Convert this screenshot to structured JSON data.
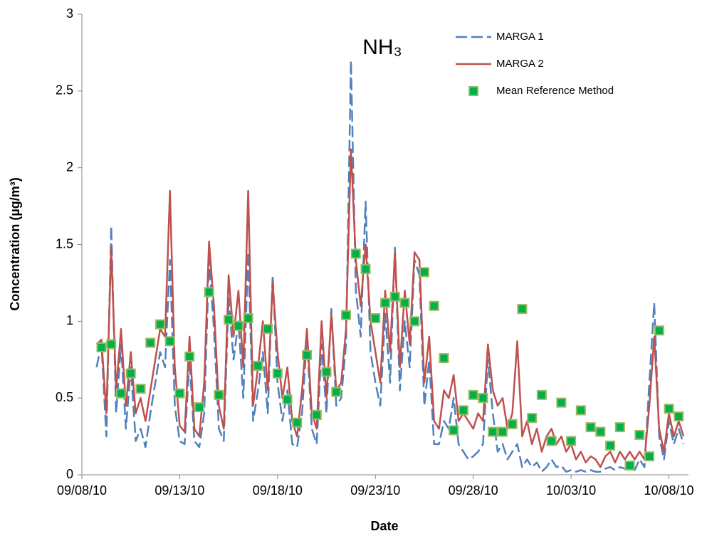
{
  "chart_data": {
    "type": "line",
    "title": "NH₃",
    "x_label": "Date",
    "y_label": "Concentration (µg/m³)",
    "xlim": [
      "2010-09-08",
      "2010-10-09"
    ],
    "xticks": [
      {
        "value": "2010-09-08",
        "label": "09/08/10"
      },
      {
        "value": "2010-09-13",
        "label": "09/13/10"
      },
      {
        "value": "2010-09-18",
        "label": "09/18/10"
      },
      {
        "value": "2010-09-23",
        "label": "09/23/10"
      },
      {
        "value": "2010-09-28",
        "label": "09/28/10"
      },
      {
        "value": "2010-10-03",
        "label": "10/03/10"
      },
      {
        "value": "2010-10-08",
        "label": "10/08/10"
      }
    ],
    "ylim": [
      0,
      3
    ],
    "yticks": [
      0,
      0.5,
      1,
      1.5,
      2,
      2.5,
      3
    ],
    "legend": "top-right",
    "x": [
      "2010-09-08T18:00",
      "2010-09-09T00:00",
      "2010-09-09T06:00",
      "2010-09-09T12:00",
      "2010-09-09T18:00",
      "2010-09-10T00:00",
      "2010-09-10T06:00",
      "2010-09-10T12:00",
      "2010-09-10T18:00",
      "2010-09-11T00:00",
      "2010-09-11T06:00",
      "2010-09-11T12:00",
      "2010-09-11T18:00",
      "2010-09-12T00:00",
      "2010-09-12T06:00",
      "2010-09-12T12:00",
      "2010-09-12T18:00",
      "2010-09-13T00:00",
      "2010-09-13T06:00",
      "2010-09-13T12:00",
      "2010-09-13T18:00",
      "2010-09-14T00:00",
      "2010-09-14T06:00",
      "2010-09-14T12:00",
      "2010-09-14T18:00",
      "2010-09-15T00:00",
      "2010-09-15T06:00",
      "2010-09-15T12:00",
      "2010-09-15T18:00",
      "2010-09-16T00:00",
      "2010-09-16T06:00",
      "2010-09-16T12:00",
      "2010-09-16T18:00",
      "2010-09-17T00:00",
      "2010-09-17T06:00",
      "2010-09-17T12:00",
      "2010-09-17T18:00",
      "2010-09-18T00:00",
      "2010-09-18T06:00",
      "2010-09-18T12:00",
      "2010-09-18T18:00",
      "2010-09-19T00:00",
      "2010-09-19T06:00",
      "2010-09-19T12:00",
      "2010-09-19T18:00",
      "2010-09-20T00:00",
      "2010-09-20T06:00",
      "2010-09-20T12:00",
      "2010-09-20T18:00",
      "2010-09-21T00:00",
      "2010-09-21T06:00",
      "2010-09-21T12:00",
      "2010-09-21T18:00",
      "2010-09-22T00:00",
      "2010-09-22T06:00",
      "2010-09-22T12:00",
      "2010-09-22T18:00",
      "2010-09-23T00:00",
      "2010-09-23T06:00",
      "2010-09-23T12:00",
      "2010-09-23T18:00",
      "2010-09-24T00:00",
      "2010-09-24T06:00",
      "2010-09-24T12:00",
      "2010-09-24T18:00",
      "2010-09-25T00:00",
      "2010-09-25T06:00",
      "2010-09-25T12:00",
      "2010-09-25T18:00",
      "2010-09-26T00:00",
      "2010-09-26T06:00",
      "2010-09-26T12:00",
      "2010-09-26T18:00",
      "2010-09-27T00:00",
      "2010-09-27T06:00",
      "2010-09-27T12:00",
      "2010-09-27T18:00",
      "2010-09-28T00:00",
      "2010-09-28T06:00",
      "2010-09-28T12:00",
      "2010-09-28T18:00",
      "2010-09-29T00:00",
      "2010-09-29T06:00",
      "2010-09-29T12:00",
      "2010-09-29T18:00",
      "2010-09-30T00:00",
      "2010-09-30T06:00",
      "2010-09-30T12:00",
      "2010-09-30T18:00",
      "2010-10-01T00:00",
      "2010-10-01T06:00",
      "2010-10-01T12:00",
      "2010-10-01T18:00",
      "2010-10-02T00:00",
      "2010-10-02T06:00",
      "2010-10-02T12:00",
      "2010-10-02T18:00",
      "2010-10-03T00:00",
      "2010-10-03T06:00",
      "2010-10-03T12:00",
      "2010-10-03T18:00",
      "2010-10-04T00:00",
      "2010-10-04T06:00",
      "2010-10-04T12:00",
      "2010-10-04T18:00",
      "2010-10-05T00:00",
      "2010-10-05T06:00",
      "2010-10-05T12:00",
      "2010-10-05T18:00",
      "2010-10-06T00:00",
      "2010-10-06T06:00",
      "2010-10-06T12:00",
      "2010-10-06T18:00",
      "2010-10-07T00:00",
      "2010-10-07T06:00",
      "2010-10-07T12:00",
      "2010-10-07T18:00",
      "2010-10-08T00:00",
      "2010-10-08T06:00",
      "2010-10-08T12:00",
      "2010-10-08T18:00"
    ],
    "series": [
      {
        "name": "MARGA 1",
        "type": "line",
        "dashed": true,
        "color": "#4f81bd",
        "values": [
          0.7,
          0.85,
          0.25,
          1.62,
          0.4,
          0.85,
          0.3,
          0.7,
          0.22,
          0.3,
          0.18,
          0.4,
          0.6,
          0.8,
          0.7,
          1.4,
          0.45,
          0.22,
          0.2,
          0.75,
          0.22,
          0.18,
          0.4,
          1.4,
          0.95,
          0.3,
          0.22,
          1.15,
          0.75,
          1.0,
          0.5,
          1.45,
          0.35,
          0.55,
          0.8,
          0.4,
          1.3,
          0.6,
          0.35,
          0.55,
          0.2,
          0.18,
          0.4,
          0.9,
          0.3,
          0.2,
          0.85,
          0.4,
          1.08,
          0.45,
          0.5,
          0.85,
          2.7,
          1.2,
          0.9,
          1.78,
          0.8,
          0.6,
          0.45,
          1.05,
          0.6,
          1.48,
          0.55,
          1.0,
          0.7,
          1.4,
          1.3,
          0.45,
          0.75,
          0.2,
          0.2,
          0.35,
          0.3,
          0.5,
          0.2,
          0.15,
          0.1,
          0.12,
          0.15,
          0.2,
          0.75,
          0.4,
          0.15,
          0.2,
          0.1,
          0.15,
          0.2,
          0.05,
          0.1,
          0.05,
          0.08,
          0.02,
          0.05,
          0.1,
          0.05,
          0.06,
          0.02,
          0.03,
          0.02,
          0.03,
          0.02,
          0.03,
          0.02,
          0.02,
          0.04,
          0.05,
          0.03,
          0.05,
          0.04,
          0.05,
          0.03,
          0.1,
          0.05,
          0.6,
          1.12,
          0.25,
          0.1,
          0.35,
          0.2,
          0.3,
          0.2
        ]
      },
      {
        "name": "MARGA 2",
        "type": "line",
        "dashed": false,
        "color": "#c0504d",
        "values": [
          0.85,
          0.88,
          0.4,
          1.48,
          0.55,
          0.95,
          0.45,
          0.8,
          0.4,
          0.5,
          0.35,
          0.55,
          0.75,
          0.95,
          0.9,
          1.85,
          0.7,
          0.32,
          0.28,
          0.9,
          0.3,
          0.25,
          0.6,
          1.52,
          1.1,
          0.45,
          0.3,
          1.3,
          0.9,
          1.2,
          0.7,
          1.85,
          0.45,
          0.7,
          1.0,
          0.55,
          1.25,
          0.8,
          0.5,
          0.7,
          0.35,
          0.25,
          0.55,
          0.95,
          0.4,
          0.3,
          1.0,
          0.5,
          1.05,
          0.55,
          0.6,
          0.95,
          2.12,
          1.4,
          1.1,
          1.5,
          1.0,
          0.8,
          0.6,
          1.2,
          0.8,
          1.45,
          0.7,
          1.2,
          0.85,
          1.45,
          1.4,
          0.6,
          0.9,
          0.35,
          0.3,
          0.55,
          0.5,
          0.65,
          0.35,
          0.4,
          0.35,
          0.3,
          0.4,
          0.35,
          0.85,
          0.55,
          0.45,
          0.5,
          0.3,
          0.4,
          0.87,
          0.25,
          0.35,
          0.2,
          0.3,
          0.15,
          0.25,
          0.3,
          0.2,
          0.25,
          0.15,
          0.2,
          0.1,
          0.15,
          0.08,
          0.12,
          0.1,
          0.05,
          0.12,
          0.15,
          0.08,
          0.15,
          0.1,
          0.15,
          0.1,
          0.15,
          0.1,
          0.45,
          0.9,
          0.3,
          0.15,
          0.4,
          0.25,
          0.35,
          0.25
        ]
      },
      {
        "name": "Mean Reference Method",
        "type": "scatter",
        "color": "#00b050",
        "edge_color": "#9bbb59",
        "x": [
          "2010-09-09T00:00",
          "2010-09-09T12:00",
          "2010-09-10T00:00",
          "2010-09-10T12:00",
          "2010-09-11T00:00",
          "2010-09-11T12:00",
          "2010-09-12T00:00",
          "2010-09-12T12:00",
          "2010-09-13T00:00",
          "2010-09-13T12:00",
          "2010-09-14T00:00",
          "2010-09-14T12:00",
          "2010-09-15T00:00",
          "2010-09-15T12:00",
          "2010-09-16T00:00",
          "2010-09-16T12:00",
          "2010-09-17T00:00",
          "2010-09-17T12:00",
          "2010-09-18T00:00",
          "2010-09-18T12:00",
          "2010-09-19T00:00",
          "2010-09-19T12:00",
          "2010-09-20T00:00",
          "2010-09-20T12:00",
          "2010-09-21T00:00",
          "2010-09-21T12:00",
          "2010-09-22T00:00",
          "2010-09-22T12:00",
          "2010-09-23T00:00",
          "2010-09-23T12:00",
          "2010-09-24T00:00",
          "2010-09-24T12:00",
          "2010-09-25T00:00",
          "2010-09-25T12:00",
          "2010-09-26T00:00",
          "2010-09-26T12:00",
          "2010-09-27T00:00",
          "2010-09-27T12:00",
          "2010-09-28T00:00",
          "2010-09-28T12:00",
          "2010-09-29T00:00",
          "2010-09-29T12:00",
          "2010-09-30T00:00",
          "2010-09-30T12:00",
          "2010-10-01T00:00",
          "2010-10-01T12:00",
          "2010-10-02T00:00",
          "2010-10-02T12:00",
          "2010-10-03T00:00",
          "2010-10-03T12:00",
          "2010-10-04T00:00",
          "2010-10-04T12:00",
          "2010-10-05T00:00",
          "2010-10-05T12:00",
          "2010-10-06T00:00",
          "2010-10-06T12:00",
          "2010-10-07T00:00",
          "2010-10-07T12:00",
          "2010-10-08T00:00",
          "2010-10-08T12:00"
        ],
        "values": [
          0.83,
          0.85,
          0.53,
          0.66,
          0.56,
          0.86,
          0.98,
          0.87,
          0.53,
          0.77,
          0.44,
          1.19,
          0.52,
          1.01,
          0.97,
          1.02,
          0.71,
          0.95,
          0.66,
          0.49,
          0.34,
          0.78,
          0.39,
          0.67,
          0.54,
          1.04,
          1.44,
          1.34,
          1.02,
          1.12,
          1.16,
          1.12,
          1.0,
          1.32,
          1.1,
          0.76,
          0.29,
          0.42,
          0.52,
          0.5,
          0.28,
          0.28,
          0.33,
          1.08,
          0.37,
          0.52,
          0.22,
          0.47,
          0.22,
          0.42,
          0.31,
          0.28,
          0.19,
          0.31,
          0.06,
          0.26,
          0.12,
          0.94,
          0.43,
          0.38
        ]
      }
    ]
  }
}
